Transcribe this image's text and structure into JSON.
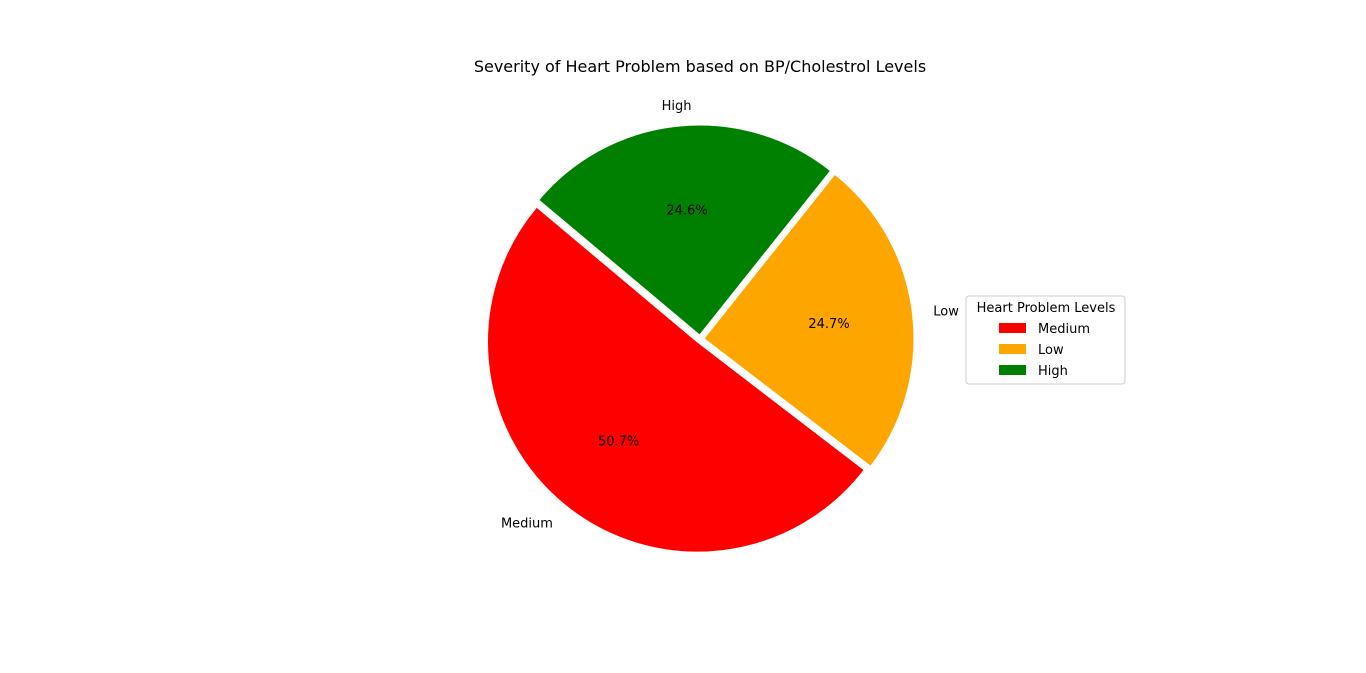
{
  "chart_data": {
    "type": "pie",
    "title": "Severity of Heart Problem based on BP/Cholestrol Levels",
    "slices": [
      {
        "label": "Medium",
        "percent": 50.7,
        "pct_label": "50.7%",
        "color": "#ff0000"
      },
      {
        "label": "Low",
        "percent": 24.7,
        "pct_label": "24.7%",
        "color": "#ffa500"
      },
      {
        "label": "High",
        "percent": 24.6,
        "pct_label": "24.6%",
        "color": "#008000"
      }
    ],
    "start_angle_deg": 140,
    "explode": true,
    "legend": {
      "title": "Heart Problem Levels",
      "placement": "center-right",
      "entries": [
        "Medium",
        "Low",
        "High"
      ]
    }
  }
}
